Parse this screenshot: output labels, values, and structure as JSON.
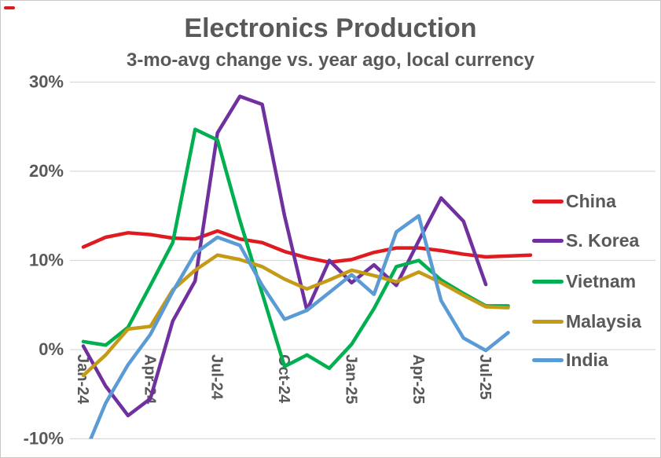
{
  "chart_data": {
    "type": "line",
    "title": "Electronics Production",
    "subtitle": "3-mo-avg change vs. year ago, local currency",
    "x": [
      "Jan-24",
      "Feb-24",
      "Mar-24",
      "Apr-24",
      "May-24",
      "Jun-24",
      "Jul-24",
      "Aug-24",
      "Sep-24",
      "Oct-24",
      "Nov-24",
      "Dec-24",
      "Jan-25",
      "Feb-25",
      "Mar-25",
      "Apr-25",
      "May-25",
      "Jun-25",
      "Jul-25",
      "Aug-25",
      "Sep-25"
    ],
    "xtick_labels": [
      "Jan-24",
      "Apr-24",
      "Jul-24",
      "Oct-24",
      "Jan-25",
      "Apr-25",
      "Jul-25"
    ],
    "xtick_indices": [
      0,
      3,
      6,
      9,
      12,
      15,
      18
    ],
    "ytick_labels": [
      "30%",
      "20%",
      "10%",
      "0%",
      "-10%"
    ],
    "ytick_values": [
      30,
      20,
      10,
      0,
      -10
    ],
    "ylim": [
      -10,
      30
    ],
    "unit": "percent",
    "grid": true,
    "legend_position": "right",
    "text_color": "#595959",
    "grid_color": "#d9d9d9",
    "series": [
      {
        "name": "China",
        "color": "#e01b20",
        "values": [
          11.5,
          12.6,
          13.1,
          12.9,
          12.5,
          12.4,
          13.3,
          12.4,
          12.0,
          11.0,
          10.3,
          9.8,
          10.1,
          10.9,
          11.4,
          11.4,
          11.1,
          10.7,
          10.4,
          10.5,
          10.6
        ]
      },
      {
        "name": "S. Korea",
        "color": "#7030a0",
        "values": [
          0.4,
          -4.1,
          -7.4,
          -5.5,
          3.2,
          7.7,
          24.3,
          28.4,
          27.5,
          15.0,
          4.4,
          10.0,
          7.5,
          9.5,
          7.2,
          12.2,
          17.0,
          14.4,
          7.3,
          null,
          null
        ]
      },
      {
        "name": "Vietnam",
        "color": "#00b050",
        "values": [
          0.9,
          0.5,
          2.5,
          7.2,
          12.0,
          24.7,
          23.5,
          14.5,
          6.3,
          -1.9,
          -0.6,
          -2.1,
          0.6,
          4.6,
          9.3,
          10.0,
          7.8,
          6.3,
          4.9,
          4.9,
          null
        ]
      },
      {
        "name": "Malaysia",
        "color": "#c49a16",
        "values": [
          -2.9,
          -0.6,
          2.3,
          2.6,
          6.7,
          8.9,
          10.6,
          10.1,
          9.3,
          7.9,
          6.8,
          7.8,
          8.9,
          8.3,
          7.6,
          8.7,
          7.5,
          6.1,
          4.8,
          4.7,
          null
        ]
      },
      {
        "name": "India",
        "color": "#5b9bd5",
        "values": [
          -12.0,
          -6.0,
          -1.7,
          1.7,
          6.5,
          10.8,
          12.6,
          11.7,
          7.2,
          3.4,
          4.4,
          6.4,
          8.4,
          6.2,
          13.2,
          15.0,
          5.5,
          1.3,
          -0.1,
          1.9,
          null
        ]
      }
    ]
  }
}
